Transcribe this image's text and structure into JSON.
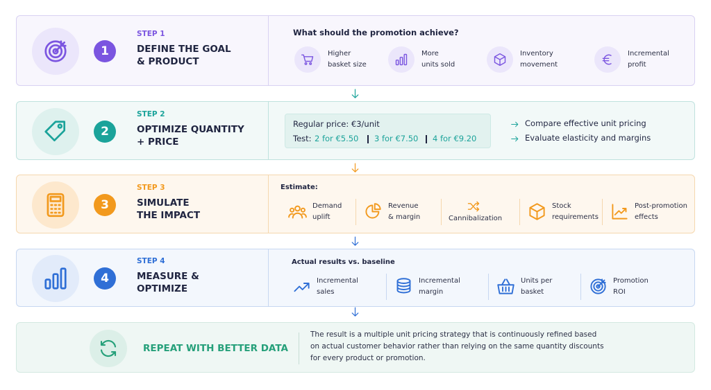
{
  "steps": [
    {
      "number": "1",
      "label": "STEP 1",
      "title": [
        "DEFINE THE GOAL",
        "& PRODUCT"
      ],
      "heading": "What should the promotion achieve?",
      "items": [
        [
          "Higher",
          "basket size"
        ],
        [
          "More",
          "units sold"
        ],
        [
          "Inventory",
          "movement"
        ],
        [
          "Incremental",
          "profit"
        ]
      ]
    },
    {
      "number": "2",
      "label": "STEP 2",
      "title": [
        "OPTIMIZE QUANTITY",
        "+ PRICE"
      ],
      "price_box": {
        "regular": "Regular price: €3/unit",
        "test_label": "Test:",
        "options": [
          "2 for €5.50",
          "3 for €7.50",
          "4 for €9.20"
        ]
      },
      "bullets": [
        "Compare effective unit pricing",
        "Evaluate elasticity and margins"
      ]
    },
    {
      "number": "3",
      "label": "STEP 3",
      "title": [
        "SIMULATE",
        "THE IMPACT"
      ],
      "heading": "Estimate:",
      "items": [
        [
          "Demand",
          "uplift"
        ],
        [
          "Revenue",
          "& margin"
        ],
        [
          "Cannibalization"
        ],
        [
          "Stock",
          "requirements"
        ],
        [
          "Post-promotion",
          "effects"
        ]
      ]
    },
    {
      "number": "4",
      "label": "STEP 4",
      "title": [
        "MEASURE &",
        "OPTIMIZE"
      ],
      "heading": "Actual results vs. baseline",
      "items": [
        [
          "Incremental",
          "sales"
        ],
        [
          "Incremental",
          "margin"
        ],
        [
          "Units per",
          "basket"
        ],
        [
          "Promotion",
          "ROI"
        ]
      ]
    }
  ],
  "repeat": {
    "title": "REPEAT WITH BETTER DATA",
    "text": [
      "The result is a multiple unit pricing strategy that is continuously refined based",
      "on actual customer behavior rather than relying on the same quantity discounts",
      "for every product or promotion."
    ]
  }
}
